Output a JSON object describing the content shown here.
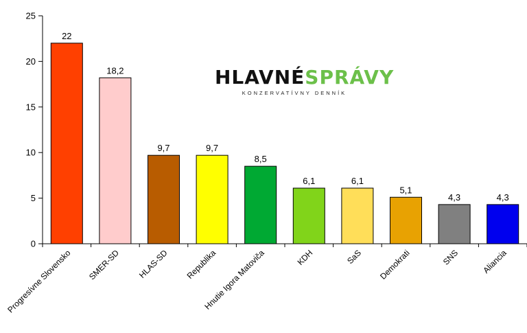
{
  "logo": {
    "left": "HLAVNÉ",
    "right": "SPRÁVY",
    "tagline": "KONZERVATÍVNY DENNÍK"
  },
  "chart_data": {
    "type": "bar",
    "categories": [
      "Progresívne Slovensko",
      "SMER-SD",
      "HLAS-SD",
      "Republika",
      "Hnutie Igora Matoviča",
      "KDH",
      "SaS",
      "Demokrati",
      "SNS",
      "Aliancia"
    ],
    "values": [
      22,
      18.2,
      9.7,
      9.7,
      8.5,
      6.1,
      6.1,
      5.1,
      4.3,
      4.3
    ],
    "value_labels": [
      "22",
      "18,2",
      "9,7",
      "9,7",
      "8,5",
      "6,1",
      "6,1",
      "5,1",
      "4,3",
      "4,3"
    ],
    "colors": [
      "#ff4000",
      "#ffcccc",
      "#b85c00",
      "#ffff00",
      "#00a933",
      "#81d41a",
      "#ffde59",
      "#e8a202",
      "#808080",
      "#0000ee"
    ],
    "ylim": [
      0,
      25
    ],
    "yticks": [
      0,
      5,
      10,
      15,
      20,
      25
    ],
    "grid": false,
    "title": "",
    "xlabel": "",
    "ylabel": ""
  }
}
